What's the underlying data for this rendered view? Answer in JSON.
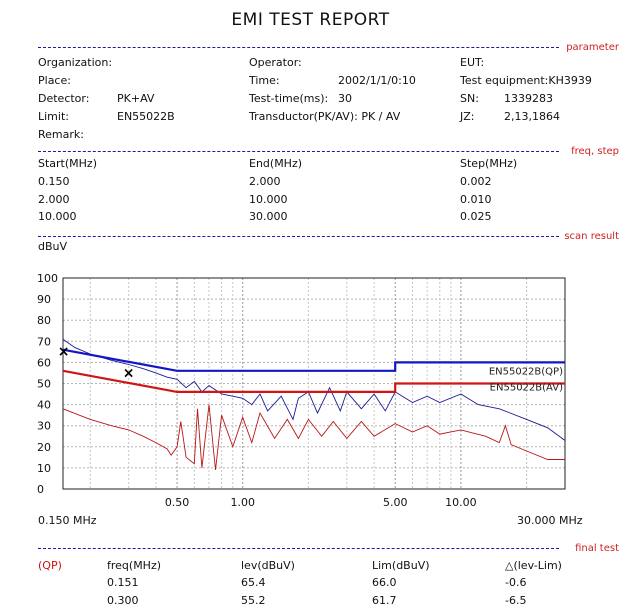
{
  "title": "EMI TEST REPORT",
  "sections": {
    "parameter": "parameter",
    "freq_step": "freq, step",
    "scan_result": "scan result",
    "final_test": "final test"
  },
  "params": {
    "organization": "Organization:",
    "place": "Place:",
    "detector_label": "Detector:",
    "detector_value": "PK+AV",
    "limit_label": "Limit:",
    "limit_value": "EN55022B",
    "remark": "Remark:",
    "operator": "Operator:",
    "time_label": "Time:",
    "time_value": "2002/1/1/0:10",
    "testtime_label": "Test-time(ms):",
    "testtime_value": "30",
    "transducer": "Transductor(PK/AV): PK / AV",
    "eut": "EUT:",
    "equipment": "Test equipment:KH3939",
    "sn_label": "SN:",
    "sn_value": "1339283",
    "jz_label": "JZ:",
    "jz_value": "2,13,1864"
  },
  "freq": {
    "headers": [
      "Start(MHz)",
      "End(MHz)",
      "Step(MHz)"
    ],
    "rows": [
      [
        "0.150",
        "2.000",
        "0.002"
      ],
      [
        "2.000",
        "10.000",
        "0.010"
      ],
      [
        "10.000",
        "30.000",
        "0.025"
      ]
    ]
  },
  "chart_data": {
    "type": "line",
    "ylabel": "dBuV",
    "xscale": "log",
    "xlim": [
      0.15,
      30
    ],
    "ylim": [
      0,
      100
    ],
    "yticks": [
      0,
      10,
      20,
      30,
      40,
      50,
      60,
      70,
      80,
      90,
      100
    ],
    "xtick_labels": [
      {
        "x": 0.5,
        "label": "0.50"
      },
      {
        "x": 1.0,
        "label": "1.00"
      },
      {
        "x": 5.0,
        "label": "5.00"
      },
      {
        "x": 10.0,
        "label": "10.00"
      }
    ],
    "x_start_label": "0.150 MHz",
    "x_end_label": "30.000 MHz",
    "grid": true,
    "limits": [
      {
        "name": "EN55022B(QP)",
        "color": "#1515c8",
        "points": [
          [
            0.15,
            66
          ],
          [
            0.5,
            56
          ],
          [
            5,
            56
          ],
          [
            5,
            60
          ],
          [
            30,
            60
          ]
        ]
      },
      {
        "name": "EN55022B(AV)",
        "color": "#d01515",
        "points": [
          [
            0.15,
            56
          ],
          [
            0.5,
            46
          ],
          [
            5,
            46
          ],
          [
            5,
            50
          ],
          [
            30,
            50
          ]
        ]
      }
    ],
    "series": [
      {
        "color": "#1a1a9a",
        "points": [
          [
            0.15,
            71
          ],
          [
            0.17,
            67
          ],
          [
            0.2,
            64
          ],
          [
            0.25,
            61
          ],
          [
            0.3,
            59
          ],
          [
            0.35,
            57
          ],
          [
            0.4,
            55
          ],
          [
            0.45,
            53
          ],
          [
            0.5,
            52
          ],
          [
            0.55,
            48
          ],
          [
            0.6,
            51
          ],
          [
            0.65,
            46
          ],
          [
            0.7,
            49
          ],
          [
            0.8,
            45
          ],
          [
            0.9,
            44
          ],
          [
            1.0,
            43
          ],
          [
            1.1,
            40
          ],
          [
            1.2,
            45
          ],
          [
            1.3,
            37
          ],
          [
            1.5,
            44
          ],
          [
            1.7,
            33
          ],
          [
            1.8,
            43
          ],
          [
            2.0,
            46
          ],
          [
            2.2,
            36
          ],
          [
            2.5,
            48
          ],
          [
            2.8,
            37
          ],
          [
            3.0,
            46
          ],
          [
            3.5,
            38
          ],
          [
            4.0,
            45
          ],
          [
            4.5,
            37
          ],
          [
            5.0,
            46
          ],
          [
            6.0,
            41
          ],
          [
            7.0,
            44
          ],
          [
            8.0,
            41
          ],
          [
            10.0,
            45
          ],
          [
            12.0,
            40
          ],
          [
            15.0,
            38
          ],
          [
            20.0,
            33
          ],
          [
            25.0,
            29
          ],
          [
            30.0,
            23
          ]
        ]
      },
      {
        "color": "#b81818",
        "points": [
          [
            0.15,
            38
          ],
          [
            0.2,
            33
          ],
          [
            0.25,
            30
          ],
          [
            0.3,
            28
          ],
          [
            0.35,
            25
          ],
          [
            0.4,
            22
          ],
          [
            0.45,
            19
          ],
          [
            0.47,
            16
          ],
          [
            0.5,
            20
          ],
          [
            0.52,
            32
          ],
          [
            0.55,
            15
          ],
          [
            0.6,
            12
          ],
          [
            0.62,
            38
          ],
          [
            0.65,
            10
          ],
          [
            0.7,
            40
          ],
          [
            0.75,
            9
          ],
          [
            0.8,
            35
          ],
          [
            0.9,
            20
          ],
          [
            1.0,
            34
          ],
          [
            1.1,
            22
          ],
          [
            1.2,
            36
          ],
          [
            1.4,
            24
          ],
          [
            1.6,
            33
          ],
          [
            1.8,
            24
          ],
          [
            2.0,
            33
          ],
          [
            2.3,
            25
          ],
          [
            2.6,
            32
          ],
          [
            3.0,
            24
          ],
          [
            3.5,
            32
          ],
          [
            4.0,
            25
          ],
          [
            5.0,
            31
          ],
          [
            6.0,
            27
          ],
          [
            7.0,
            30
          ],
          [
            8.0,
            26
          ],
          [
            10.0,
            28
          ],
          [
            13.0,
            25
          ],
          [
            15.0,
            22
          ],
          [
            16.0,
            30
          ],
          [
            17.0,
            21
          ],
          [
            20.0,
            18
          ],
          [
            25.0,
            14
          ],
          [
            30.0,
            14
          ]
        ]
      }
    ],
    "markers": [
      {
        "freq": 0.151,
        "level": 65.4
      },
      {
        "freq": 0.3,
        "level": 55.2
      }
    ]
  },
  "final": {
    "mode": "(QP)",
    "headers": [
      "freq(MHz)",
      "lev(dBuV)",
      "Lim(dBuV)",
      "△(lev-Lim)"
    ],
    "rows": [
      [
        "0.151",
        "65.4",
        "66.0",
        "-0.6"
      ],
      [
        "0.300",
        "55.2",
        "61.7",
        "-6.5"
      ]
    ]
  }
}
